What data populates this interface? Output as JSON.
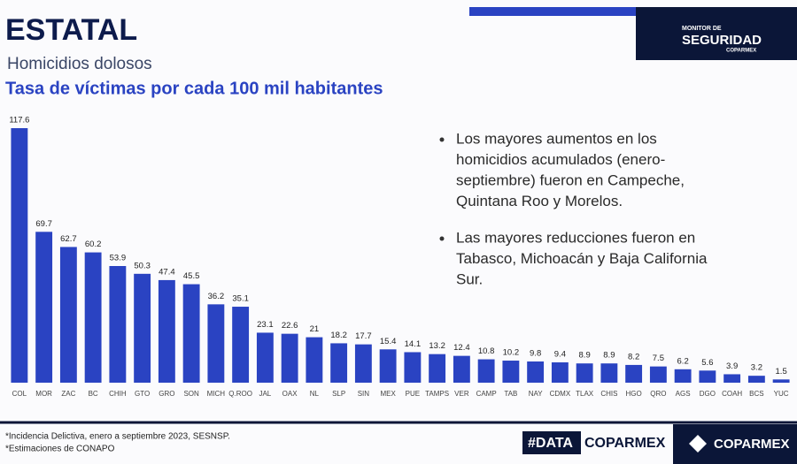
{
  "header": {
    "title": "ESTATAL",
    "subtitle": "Homicidios dolosos",
    "logo": [
      "MONITOR DE",
      "SEGURIDAD",
      "COPARMEX"
    ]
  },
  "chart_data": {
    "type": "bar",
    "title": "Tasa de víctimas por cada 100 mil habitantes",
    "color": "#2a43c2",
    "categories": [
      "COL",
      "MOR",
      "ZAC",
      "BC",
      "CHIH",
      "GTO",
      "GRO",
      "SON",
      "MICH",
      "Q.ROO",
      "JAL",
      "OAX",
      "NL",
      "SLP",
      "SIN",
      "MEX",
      "PUE",
      "TAMPS",
      "VER",
      "CAMP",
      "TAB",
      "NAY",
      "CDMX",
      "TLAX",
      "CHIS",
      "HGO",
      "QRO",
      "AGS",
      "DGO",
      "COAH",
      "BCS",
      "YUC"
    ],
    "values": [
      117.6,
      69.7,
      62.7,
      60.2,
      53.9,
      50.3,
      47.4,
      45.5,
      36.2,
      35.1,
      23.1,
      22.6,
      21,
      18.2,
      17.7,
      15.4,
      14.1,
      13.2,
      12.4,
      10.8,
      10.2,
      9.8,
      9.4,
      8.9,
      8.9,
      8.2,
      7.5,
      6.2,
      5.6,
      3.9,
      3.2,
      1.5
    ]
  },
  "bullets": [
    [
      "Los mayores aumentos en los",
      "homicidios acumulados (enero-",
      "septiembre) fueron en Campeche,",
      "Quintana Roo y Morelos."
    ],
    [
      "Las mayores reducciones fueron en",
      "Tabasco, Michoacán y Baja California",
      "Sur."
    ]
  ],
  "footer": {
    "notes": [
      "*Incidencia Delictiva, enero a septiembre 2023, SESNSP.",
      "*Estimaciones de CONAPO"
    ],
    "data_tag": [
      "#DATA",
      "COPARMEX"
    ],
    "brand": "COPARMEX"
  }
}
